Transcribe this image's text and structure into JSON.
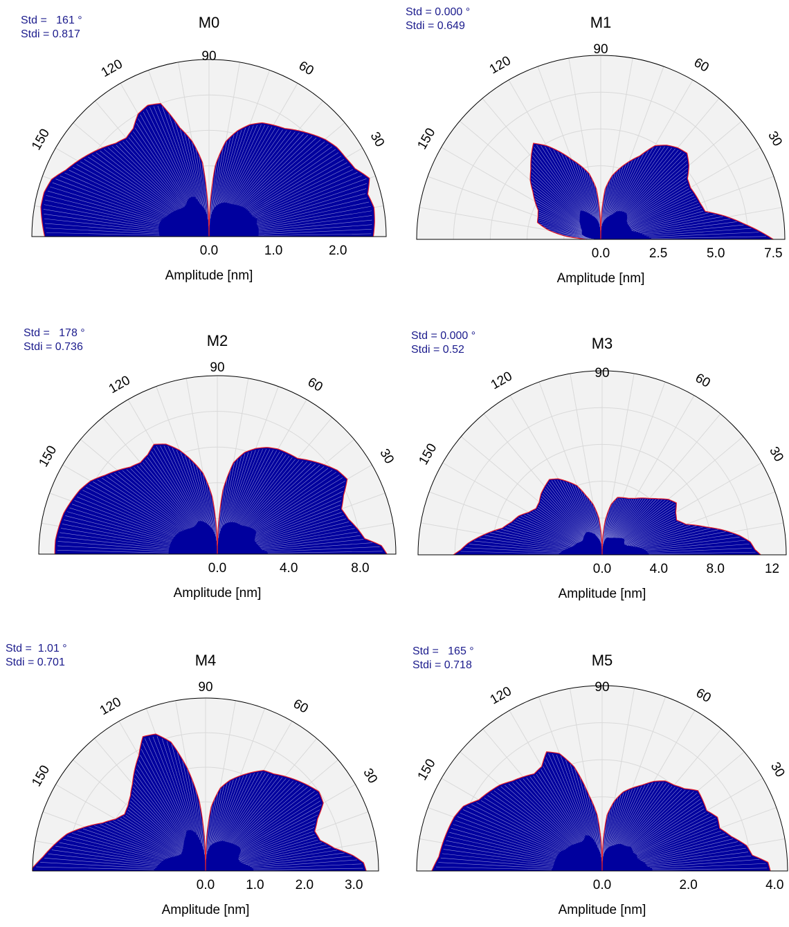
{
  "colors": {
    "fill": "#00009e",
    "outline": "#e8202a",
    "background": "#f2f2f2",
    "grid": "#d9d9d9",
    "stats_text": "#1a1a8c"
  },
  "chart_data": [
    {
      "type": "polar-area",
      "title": "M0",
      "stats": {
        "std": "Std =   161 °",
        "stdi": "Stdi = 0.817"
      },
      "xlabel": "Amplitude [nm]",
      "angle_labels": [
        "90",
        "120",
        "60",
        "150",
        "30"
      ],
      "radial_ticks": [
        0.0,
        1.0,
        2.0
      ],
      "radial_tick_labels": [
        "0.0",
        "1.0",
        "2.0"
      ],
      "rmax": 2.75,
      "profile": {
        "angles": [
          0,
          5,
          10,
          15,
          20,
          25,
          30,
          35,
          40,
          45,
          50,
          55,
          60,
          65,
          70,
          75,
          80,
          85,
          88,
          90,
          92,
          95,
          100,
          105,
          110,
          115,
          120,
          125,
          130,
          135,
          140,
          145,
          150,
          155,
          160,
          165,
          170,
          175,
          180
        ],
        "values": [
          2.55,
          2.58,
          2.6,
          2.55,
          2.65,
          2.5,
          2.45,
          2.42,
          2.35,
          2.25,
          2.15,
          2.05,
          2.0,
          1.95,
          1.85,
          1.7,
          1.5,
          1.1,
          0.5,
          0.0,
          0.5,
          1.15,
          1.5,
          1.75,
          2.2,
          2.25,
          2.2,
          2.05,
          2.0,
          2.05,
          2.15,
          2.25,
          2.35,
          2.45,
          2.6,
          2.65,
          2.65,
          2.6,
          2.55
        ]
      }
    },
    {
      "type": "polar-area",
      "title": "M1",
      "stats": {
        "std": "Std = 0.000 °",
        "stdi": "Stdi = 0.649"
      },
      "xlabel": "Amplitude [nm]",
      "angle_labels": [
        "90",
        "120",
        "60",
        "150",
        "30"
      ],
      "radial_ticks": [
        0.0,
        2.5,
        5.0,
        7.5
      ],
      "radial_tick_labels": [
        "0.0",
        "2.5",
        "5.0",
        "7.5"
      ],
      "rmax": 8.0,
      "profile": {
        "angles": [
          0,
          3,
          6,
          10,
          15,
          20,
          25,
          30,
          35,
          40,
          45,
          50,
          55,
          60,
          65,
          70,
          75,
          80,
          85,
          88,
          90,
          92,
          95,
          100,
          105,
          110,
          115,
          120,
          125,
          130,
          135,
          140,
          145,
          150,
          155,
          160,
          165,
          170,
          175,
          177,
          180
        ],
        "values": [
          7.5,
          6.9,
          6.3,
          5.6,
          4.7,
          4.6,
          4.55,
          4.5,
          4.6,
          5.0,
          5.3,
          5.2,
          5.0,
          4.7,
          4.0,
          3.6,
          3.2,
          2.8,
          2.2,
          1.2,
          0.0,
          1.2,
          2.2,
          2.9,
          3.3,
          3.7,
          4.2,
          4.7,
          5.1,
          4.7,
          4.3,
          4.0,
          3.6,
          3.3,
          3.0,
          2.9,
          2.85,
          2.3,
          1.5,
          1.0,
          0.6
        ]
      }
    },
    {
      "type": "polar-area",
      "title": "M2",
      "stats": {
        "std": "Std =   178 °",
        "stdi": "Stdi = 0.736"
      },
      "xlabel": "Amplitude [nm]",
      "angle_labels": [
        "90",
        "120",
        "60",
        "150",
        "30"
      ],
      "radial_ticks": [
        0.0,
        4.0,
        8.0
      ],
      "radial_tick_labels": [
        "0.0",
        "4.0",
        "8.0"
      ],
      "rmax": 10.0,
      "profile": {
        "angles": [
          0,
          3,
          6,
          10,
          15,
          20,
          25,
          30,
          35,
          40,
          45,
          50,
          55,
          60,
          65,
          70,
          75,
          80,
          85,
          88,
          90,
          92,
          95,
          100,
          105,
          110,
          115,
          120,
          125,
          130,
          135,
          140,
          145,
          150,
          155,
          160,
          165,
          170,
          175,
          180
        ],
        "values": [
          9.5,
          9.2,
          8.3,
          8.0,
          7.6,
          7.4,
          7.8,
          8.4,
          8.2,
          7.8,
          7.4,
          7.0,
          6.9,
          6.8,
          6.6,
          6.3,
          5.9,
          5.2,
          3.6,
          1.5,
          0.0,
          1.5,
          3.2,
          4.6,
          5.4,
          6.2,
          6.8,
          7.1,
          6.8,
          6.7,
          6.9,
          7.3,
          7.7,
          8.2,
          8.5,
          8.7,
          8.9,
          9.0,
          9.1,
          9.1
        ]
      }
    },
    {
      "type": "polar-area",
      "title": "M3",
      "stats": {
        "std": "Std = 0.000 °",
        "stdi": "Stdi = 0.52"
      },
      "xlabel": "Amplitude [nm]",
      "angle_labels": [
        "90",
        "120",
        "60",
        "150",
        "30"
      ],
      "radial_ticks": [
        0.0,
        4.0,
        8.0,
        12
      ],
      "radial_tick_labels": [
        "0.0",
        "4.0",
        "8.0",
        "12"
      ],
      "rmax": 13.0,
      "profile": {
        "angles": [
          0,
          2,
          5,
          8,
          12,
          15,
          20,
          25,
          30,
          35,
          40,
          45,
          50,
          55,
          60,
          65,
          70,
          75,
          80,
          85,
          88,
          90,
          92,
          95,
          100,
          105,
          110,
          115,
          120,
          125,
          130,
          135,
          140,
          145,
          150,
          155,
          160,
          165,
          170,
          175,
          178,
          180
        ],
        "values": [
          11.2,
          10.8,
          10.5,
          9.8,
          8.6,
          7.6,
          6.3,
          5.8,
          6.0,
          6.4,
          6.1,
          5.6,
          5.2,
          4.9,
          4.6,
          4.4,
          4.3,
          4.2,
          3.6,
          2.4,
          1.2,
          0.0,
          1.2,
          2.6,
          3.6,
          4.3,
          5.2,
          5.7,
          6.2,
          6.5,
          6.3,
          6.1,
          5.8,
          5.7,
          6.0,
          6.5,
          6.8,
          7.3,
          8.4,
          9.5,
          10.0,
          10.5
        ]
      }
    },
    {
      "type": "polar-area",
      "title": "M4",
      "stats": {
        "std": "Std =  1.01 °",
        "stdi": "Stdi = 0.701"
      },
      "xlabel": "Amplitude [nm]",
      "angle_labels": [
        "90",
        "120",
        "60",
        "150",
        "30"
      ],
      "radial_ticks": [
        0.0,
        1.0,
        2.0,
        3.0
      ],
      "radial_tick_labels": [
        "0.0",
        "1.0",
        "2.0",
        "3.0"
      ],
      "rmax": 3.5,
      "profile": {
        "angles": [
          0,
          3,
          6,
          10,
          15,
          20,
          25,
          30,
          35,
          40,
          45,
          50,
          55,
          60,
          65,
          70,
          75,
          80,
          85,
          88,
          90,
          92,
          95,
          100,
          105,
          110,
          115,
          120,
          125,
          130,
          135,
          140,
          145,
          150,
          155,
          160,
          165,
          170,
          175,
          180
        ],
        "values": [
          3.25,
          3.2,
          3.0,
          2.65,
          2.4,
          2.35,
          2.5,
          2.75,
          2.8,
          2.7,
          2.6,
          2.5,
          2.4,
          2.35,
          2.2,
          2.05,
          1.9,
          1.7,
          1.3,
          0.7,
          0.0,
          0.7,
          1.4,
          2.1,
          2.7,
          2.95,
          3.0,
          2.7,
          2.5,
          2.3,
          2.15,
          2.05,
          2.0,
          2.1,
          2.3,
          2.6,
          2.9,
          3.1,
          3.3,
          3.55
        ]
      }
    },
    {
      "type": "polar-area",
      "title": "M5",
      "stats": {
        "std": "Std =   165 °",
        "stdi": "Stdi = 0.718"
      },
      "xlabel": "Amplitude [nm]",
      "angle_labels": [
        "90",
        "120",
        "60",
        "150",
        "30"
      ],
      "radial_ticks": [
        0.0,
        2.0,
        4.0
      ],
      "radial_tick_labels": [
        "0.0",
        "2.0",
        "4.0"
      ],
      "rmax": 4.3,
      "profile": {
        "angles": [
          0,
          3,
          6,
          10,
          15,
          20,
          25,
          30,
          35,
          40,
          45,
          50,
          55,
          60,
          65,
          70,
          75,
          80,
          85,
          88,
          90,
          92,
          95,
          100,
          105,
          110,
          115,
          120,
          125,
          130,
          135,
          140,
          145,
          150,
          155,
          160,
          165,
          170,
          175,
          180
        ],
        "values": [
          3.9,
          3.85,
          3.5,
          3.4,
          3.1,
          2.9,
          2.95,
          2.8,
          2.85,
          2.9,
          2.7,
          2.6,
          2.55,
          2.4,
          2.2,
          2.05,
          1.9,
          1.65,
          1.3,
          0.7,
          0.0,
          0.7,
          1.3,
          1.8,
          2.5,
          2.9,
          3.05,
          2.8,
          2.75,
          2.85,
          2.95,
          3.1,
          3.2,
          3.3,
          3.55,
          3.65,
          3.7,
          3.75,
          3.8,
          3.95
        ]
      }
    }
  ]
}
